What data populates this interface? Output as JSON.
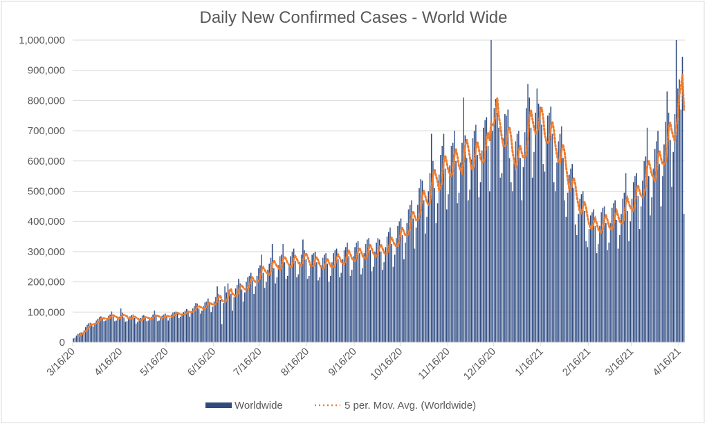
{
  "chart_data": {
    "type": "bar",
    "title": "Daily New Confirmed Cases - World Wide",
    "xlabel": "",
    "ylabel": "",
    "ylim": [
      0,
      1000000
    ],
    "y_ticks": [
      "0",
      "100,000",
      "200,000",
      "300,000",
      "400,000",
      "500,000",
      "600,000",
      "700,000",
      "800,000",
      "900,000",
      "1,000,000"
    ],
    "x_ticks": [
      "3/16/20",
      "4/16/20",
      "5/16/20",
      "6/16/20",
      "7/16/20",
      "8/16/20",
      "9/16/20",
      "10/16/20",
      "11/16/20",
      "12/16/20",
      "1/16/21",
      "2/16/21",
      "3/16/21",
      "4/16/21"
    ],
    "x_range": [
      "3/16/20",
      "4/19/21"
    ],
    "grid": true,
    "legend_position": "bottom",
    "colors": {
      "bars": "#2e4a7f",
      "moving_average": "#ed7d31",
      "grid": "#d9d9d9",
      "text": "#595959"
    },
    "series": [
      {
        "name": "Worldwide",
        "type": "bar",
        "values": [
          13000,
          15000,
          22000,
          28000,
          30000,
          33000,
          30000,
          40000,
          50000,
          58000,
          63000,
          65000,
          60000,
          52000,
          64000,
          72000,
          78000,
          84000,
          86000,
          80000,
          70000,
          72000,
          80000,
          88000,
          92000,
          102000,
          85000,
          70000,
          72000,
          78000,
          85000,
          112000,
          98000,
          82000,
          68000,
          70000,
          78000,
          86000,
          90000,
          92000,
          80000,
          62000,
          68000,
          75000,
          80000,
          88000,
          90000,
          84000,
          70000,
          72000,
          80000,
          85000,
          92000,
          105000,
          88000,
          70000,
          72000,
          82000,
          88000,
          92000,
          95000,
          85000,
          72000,
          80000,
          92000,
          98000,
          100000,
          102000,
          95000,
          80000,
          85000,
          95000,
          100000,
          105000,
          110000,
          100000,
          85000,
          98000,
          112000,
          120000,
          130000,
          128000,
          112000,
          95000,
          105000,
          120000,
          132000,
          135000,
          145000,
          128000,
          100000,
          118000,
          135000,
          150000,
          185000,
          160000,
          140000,
          60000,
          130000,
          185000,
          165000,
          195000,
          175000,
          160000,
          105000,
          150000,
          178000,
          190000,
          210000,
          195000,
          175000,
          135000,
          165000,
          200000,
          215000,
          220000,
          230000,
          205000,
          160000,
          185000,
          220000,
          245000,
          255000,
          290000,
          230000,
          180000,
          200000,
          240000,
          260000,
          280000,
          325000,
          245000,
          195000,
          215000,
          255000,
          285000,
          290000,
          325000,
          265000,
          210000,
          220000,
          260000,
          285000,
          300000,
          310000,
          270000,
          215000,
          225000,
          265000,
          290000,
          340000,
          305000,
          275000,
          210000,
          220000,
          260000,
          290000,
          295000,
          300000,
          265000,
          205000,
          215000,
          255000,
          280000,
          290000,
          295000,
          260000,
          200000,
          220000,
          265000,
          295000,
          305000,
          310000,
          275000,
          215000,
          230000,
          275000,
          305000,
          315000,
          330000,
          285000,
          220000,
          240000,
          285000,
          315000,
          330000,
          335000,
          295000,
          225000,
          245000,
          295000,
          325000,
          340000,
          345000,
          305000,
          235000,
          250000,
          300000,
          330000,
          345000,
          340000,
          300000,
          240000,
          265000,
          315000,
          350000,
          365000,
          380000,
          325000,
          250000,
          290000,
          345000,
          385000,
          400000,
          410000,
          355000,
          275000,
          330000,
          395000,
          440000,
          455000,
          470000,
          410000,
          310000,
          380000,
          455000,
          510000,
          540000,
          535000,
          470000,
          360000,
          415000,
          500000,
          560000,
          690000,
          600000,
          510000,
          395000,
          460000,
          555000,
          620000,
          650000,
          690000,
          575000,
          440000,
          490000,
          585000,
          650000,
          660000,
          700000,
          600000,
          460000,
          495000,
          595000,
          660000,
          810000,
          685000,
          610000,
          470000,
          505000,
          605000,
          675000,
          700000,
          720000,
          620000,
          480000,
          530000,
          635000,
          710000,
          735000,
          745000,
          650000,
          500000,
          1000000,
          700000,
          775000,
          805000,
          760000,
          710000,
          545000,
          560000,
          675000,
          755000,
          750000,
          770000,
          610000,
          530000,
          500000,
          595000,
          665000,
          690000,
          700000,
          610000,
          470000,
          580000,
          695000,
          775000,
          855000,
          810000,
          710000,
          545000,
          630000,
          760000,
          840000,
          790000,
          780000,
          720000,
          590000,
          565000,
          675000,
          750000,
          760000,
          780000,
          690000,
          530000,
          500000,
          595000,
          665000,
          690000,
          715000,
          610000,
          470000,
          415000,
          495000,
          555000,
          575000,
          590000,
          510000,
          390000,
          355000,
          425000,
          475000,
          490000,
          500000,
          435000,
          335000,
          315000,
          375000,
          420000,
          430000,
          440000,
          385000,
          295000,
          325000,
          385000,
          430000,
          445000,
          450000,
          395000,
          305000,
          330000,
          395000,
          445000,
          460000,
          470000,
          405000,
          310000,
          355000,
          425000,
          475000,
          495000,
          560000,
          435000,
          335000,
          400000,
          475000,
          530000,
          550000,
          560000,
          485000,
          375000,
          450000,
          535000,
          600000,
          615000,
          710000,
          550000,
          420000,
          480000,
          575000,
          640000,
          665000,
          700000,
          590000,
          450000,
          550000,
          655000,
          730000,
          830000,
          760000,
          670000,
          515000,
          630000,
          755000,
          1000000,
          840000,
          870000,
          770000,
          945000,
          425000
        ]
      },
      {
        "name": "5 per. Mov. Avg. (Worldwide)",
        "type": "line",
        "style": "dotted",
        "moving_average_period": 5,
        "of_series": "Worldwide"
      }
    ]
  }
}
